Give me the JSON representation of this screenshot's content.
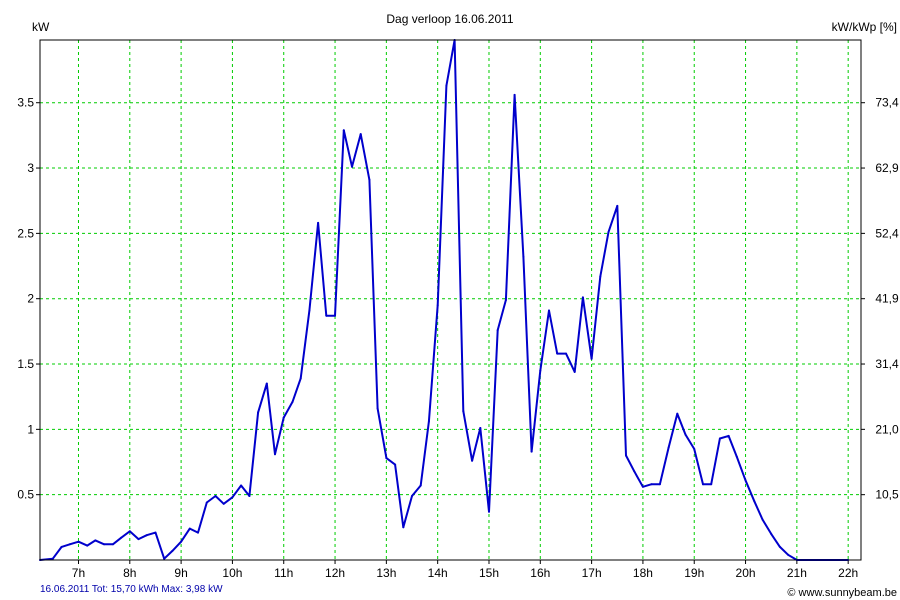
{
  "colors": {
    "line": "#0000cc",
    "grid": "#00cc00",
    "axis": "#000000",
    "footer": "#0000aa"
  },
  "chart_data": {
    "type": "line",
    "title": "Dag  verloop 16.06.2011",
    "ylabel": "kW",
    "ylabel_right": "kW/kWp [%]",
    "ylim": [
      0,
      3.98
    ],
    "xlim": [
      6.25,
      22.25
    ],
    "grid": true,
    "x_ticks": [
      7,
      8,
      9,
      10,
      11,
      12,
      13,
      14,
      15,
      16,
      17,
      18,
      19,
      20,
      21,
      22
    ],
    "x_tick_labels": [
      "7h",
      "8h",
      "9h",
      "10h",
      "11h",
      "12h",
      "13h",
      "14h",
      "15h",
      "16h",
      "17h",
      "18h",
      "19h",
      "20h",
      "21h",
      "22h"
    ],
    "y_ticks": [
      0.5,
      1,
      1.5,
      2,
      2.5,
      3,
      3.5
    ],
    "y_tick_labels": [
      "0.5",
      "1",
      "1.5",
      "2",
      "2.5",
      "3",
      "3.5"
    ],
    "y_right_tick_labels": [
      "10,5",
      "21,0",
      "31,4",
      "41,9",
      "52,4",
      "62,9",
      "73,4"
    ],
    "series": [
      {
        "x": [
          6.25,
          6.5,
          6.67,
          6.83,
          7.0,
          7.17,
          7.33,
          7.5,
          7.67,
          7.83,
          8.0,
          8.17,
          8.33,
          8.5,
          8.67,
          8.83,
          9.0,
          9.17,
          9.33,
          9.5,
          9.67,
          9.83,
          10.0,
          10.17,
          10.33,
          10.5,
          10.67,
          10.83,
          11.0,
          11.17,
          11.33,
          11.5,
          11.67,
          11.83,
          12.0,
          12.17,
          12.33,
          12.5,
          12.67,
          12.83,
          13.0,
          13.17,
          13.33,
          13.5,
          13.67,
          13.83,
          14.0,
          14.17,
          14.33,
          14.5,
          14.67,
          14.83,
          15.0,
          15.17,
          15.33,
          15.5,
          15.67,
          15.83,
          16.0,
          16.17,
          16.33,
          16.5,
          16.67,
          16.83,
          17.0,
          17.17,
          17.33,
          17.5,
          17.67,
          17.83,
          18.0,
          18.17,
          18.33,
          18.5,
          18.67,
          18.83,
          19.0,
          19.17,
          19.33,
          19.5,
          19.67,
          19.83,
          20.0,
          20.17,
          20.33,
          20.5,
          20.67,
          20.83,
          21.0,
          21.17,
          21.33,
          21.5,
          21.67,
          21.83,
          22.0
        ],
        "values": [
          0.0,
          0.01,
          0.1,
          0.12,
          0.14,
          0.11,
          0.15,
          0.12,
          0.12,
          0.17,
          0.22,
          0.16,
          0.19,
          0.21,
          0.01,
          0.07,
          0.14,
          0.24,
          0.21,
          0.44,
          0.49,
          0.43,
          0.48,
          0.57,
          0.49,
          1.13,
          1.35,
          0.81,
          1.09,
          1.21,
          1.39,
          1.91,
          2.58,
          1.87,
          1.87,
          3.29,
          3.01,
          3.26,
          2.91,
          1.16,
          0.78,
          0.73,
          0.25,
          0.49,
          0.57,
          1.06,
          1.95,
          3.63,
          3.98,
          1.14,
          0.76,
          1.01,
          0.37,
          1.76,
          1.99,
          3.56,
          2.32,
          0.83,
          1.45,
          1.91,
          1.58,
          1.58,
          1.44,
          2.01,
          1.54,
          2.17,
          2.51,
          2.71,
          0.8,
          0.68,
          0.56,
          0.58,
          0.58,
          0.86,
          1.12,
          0.96,
          0.85,
          0.58,
          0.58,
          0.93,
          0.95,
          0.79,
          0.61,
          0.45,
          0.31,
          0.2,
          0.1,
          0.04,
          0.0,
          0.0,
          0.0,
          0.0,
          0.0,
          0.0,
          0.0
        ]
      }
    ]
  },
  "footer": {
    "summary": "16.06.2011 Tot: 15,70 kWh Max: 3,98 kW",
    "copyright": "© www.sunnybeam.be"
  }
}
